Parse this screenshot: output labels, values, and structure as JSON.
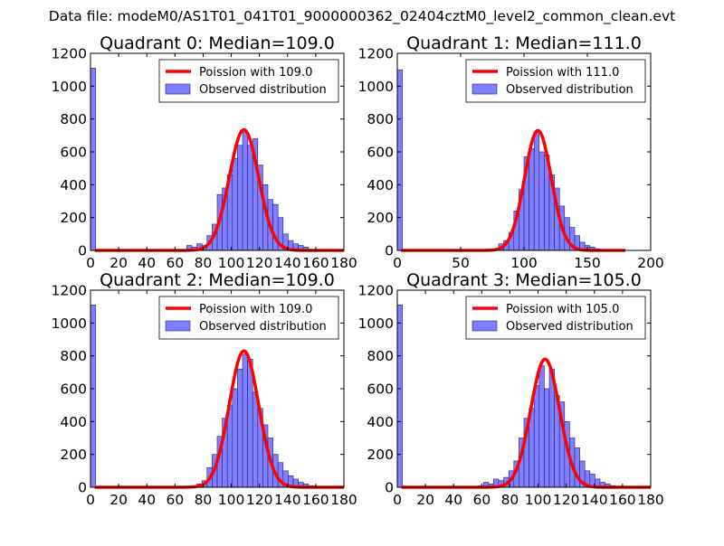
{
  "suptitle": "Data file: modeM0/AS1T01_041T01_9000000362_02404cztM0_level2_common_clean.evt",
  "colors": {
    "poisson": "#ff0000",
    "hist_fill": "#7f7fff",
    "hist_edge": "#1f1f7a",
    "axes": "#000000"
  },
  "chart_data": [
    {
      "type": "bar",
      "title": "Quadrant 0: Median=109.0",
      "xlim": [
        0,
        180
      ],
      "ylim": [
        0,
        1200
      ],
      "xticks": [
        "0",
        "20",
        "40",
        "60",
        "80",
        "100",
        "120",
        "140",
        "160",
        "180"
      ],
      "xtick_values": [
        0,
        20,
        40,
        60,
        80,
        100,
        120,
        140,
        160,
        180
      ],
      "yticks": [
        "0",
        "200",
        "400",
        "600",
        "800",
        "1000",
        "1200"
      ],
      "ytick_values": [
        0,
        200,
        400,
        600,
        800,
        1000,
        1200
      ],
      "bin_width": 3.6,
      "bins": [
        [
          0,
          1110
        ],
        [
          61.2,
          5
        ],
        [
          64.8,
          4
        ],
        [
          68.4,
          30
        ],
        [
          72,
          20
        ],
        [
          75.6,
          40
        ],
        [
          79.2,
          30
        ],
        [
          82.8,
          90
        ],
        [
          86.4,
          160
        ],
        [
          90,
          340
        ],
        [
          93.6,
          380
        ],
        [
          97.2,
          460
        ],
        [
          100.8,
          560
        ],
        [
          104.4,
          640
        ],
        [
          108,
          720
        ],
        [
          111.6,
          640
        ],
        [
          115.2,
          680
        ],
        [
          118.8,
          520
        ],
        [
          122.4,
          400
        ],
        [
          126,
          310
        ],
        [
          129.6,
          280
        ],
        [
          133.2,
          200
        ],
        [
          136.8,
          100
        ],
        [
          140.4,
          60
        ],
        [
          144,
          40
        ],
        [
          147.6,
          30
        ],
        [
          151.2,
          20
        ],
        [
          154.8,
          5
        ]
      ],
      "poisson_label": "Poission with 109.0",
      "observed_label": "Observed distribution",
      "poisson_curve": {
        "mean": 109.0,
        "peak": 735,
        "x_start": 3,
        "x_end": 180
      }
    },
    {
      "type": "bar",
      "title": "Quadrant 1: Median=111.0",
      "xlim": [
        0,
        200
      ],
      "ylim": [
        0,
        1200
      ],
      "xticks": [
        "0",
        "50",
        "100",
        "150",
        "200"
      ],
      "xtick_values": [
        0,
        50,
        100,
        150,
        200
      ],
      "yticks": [
        "0",
        "200",
        "400",
        "600",
        "800",
        "1000",
        "1200"
      ],
      "ytick_values": [
        0,
        200,
        400,
        600,
        800,
        1000,
        1200
      ],
      "bin_width": 4,
      "bins": [
        [
          0,
          1100
        ],
        [
          72,
          5
        ],
        [
          76,
          10
        ],
        [
          80,
          40
        ],
        [
          84,
          60
        ],
        [
          88,
          110
        ],
        [
          92,
          240
        ],
        [
          96,
          370
        ],
        [
          100,
          570
        ],
        [
          104,
          620
        ],
        [
          108,
          720
        ],
        [
          112,
          600
        ],
        [
          116,
          580
        ],
        [
          120,
          460
        ],
        [
          124,
          380
        ],
        [
          128,
          270
        ],
        [
          132,
          200
        ],
        [
          136,
          140
        ],
        [
          140,
          90
        ],
        [
          144,
          50
        ],
        [
          148,
          30
        ],
        [
          152,
          20
        ],
        [
          156,
          10
        ]
      ],
      "poisson_label": "Poission with 111.0",
      "observed_label": "Observed distribution",
      "poisson_curve": {
        "mean": 111.0,
        "peak": 730,
        "x_start": 3,
        "x_end": 180
      }
    },
    {
      "type": "bar",
      "title": "Quadrant 2: Median=109.0",
      "xlim": [
        0,
        180
      ],
      "ylim": [
        0,
        1200
      ],
      "xticks": [
        "0",
        "20",
        "40",
        "60",
        "80",
        "100",
        "120",
        "140",
        "160",
        "180"
      ],
      "xtick_values": [
        0,
        20,
        40,
        60,
        80,
        100,
        120,
        140,
        160,
        180
      ],
      "yticks": [
        "0",
        "200",
        "400",
        "600",
        "800",
        "1000",
        "1200"
      ],
      "ytick_values": [
        0,
        200,
        400,
        600,
        800,
        1000,
        1200
      ],
      "bin_width": 3.6,
      "bins": [
        [
          0,
          1110
        ],
        [
          72,
          10
        ],
        [
          75.6,
          20
        ],
        [
          79.2,
          40
        ],
        [
          82.8,
          120
        ],
        [
          86.4,
          200
        ],
        [
          90,
          310
        ],
        [
          93.6,
          420
        ],
        [
          97.2,
          500
        ],
        [
          100.8,
          600
        ],
        [
          104.4,
          720
        ],
        [
          108,
          810
        ],
        [
          111.6,
          780
        ],
        [
          115.2,
          580
        ],
        [
          118.8,
          480
        ],
        [
          122.4,
          380
        ],
        [
          126,
          300
        ],
        [
          129.6,
          200
        ],
        [
          133.2,
          150
        ],
        [
          136.8,
          100
        ],
        [
          140.4,
          70
        ],
        [
          144,
          50
        ],
        [
          147.6,
          30
        ],
        [
          151.2,
          20
        ],
        [
          154.8,
          10
        ]
      ],
      "poisson_label": "Poission with 109.0",
      "observed_label": "Observed distribution",
      "poisson_curve": {
        "mean": 109.0,
        "peak": 830,
        "x_start": 3,
        "x_end": 180
      }
    },
    {
      "type": "bar",
      "title": "Quadrant 3: Median=105.0",
      "xlim": [
        0,
        180
      ],
      "ylim": [
        0,
        1200
      ],
      "xticks": [
        "0",
        "20",
        "40",
        "60",
        "80",
        "100",
        "120",
        "140",
        "160",
        "180"
      ],
      "xtick_values": [
        0,
        20,
        40,
        60,
        80,
        100,
        120,
        140,
        160,
        180
      ],
      "yticks": [
        "0",
        "200",
        "400",
        "600",
        "800",
        "1000",
        "1200"
      ],
      "ytick_values": [
        0,
        200,
        400,
        600,
        800,
        1000,
        1200
      ],
      "bin_width": 3.6,
      "bins": [
        [
          0,
          1110
        ],
        [
          57.6,
          10
        ],
        [
          61.2,
          30
        ],
        [
          64.8,
          20
        ],
        [
          68.4,
          50
        ],
        [
          72,
          40
        ],
        [
          75.6,
          60
        ],
        [
          79.2,
          100
        ],
        [
          82.8,
          160
        ],
        [
          86.4,
          300
        ],
        [
          90,
          420
        ],
        [
          93.6,
          480
        ],
        [
          97.2,
          620
        ],
        [
          100.8,
          740
        ],
        [
          104.4,
          600
        ],
        [
          108,
          720
        ],
        [
          111.6,
          560
        ],
        [
          115.2,
          520
        ],
        [
          118.8,
          400
        ],
        [
          122.4,
          300
        ],
        [
          126,
          240
        ],
        [
          129.6,
          160
        ],
        [
          133.2,
          100
        ],
        [
          136.8,
          80
        ],
        [
          140.4,
          50
        ],
        [
          144,
          30
        ],
        [
          147.6,
          20
        ],
        [
          151.2,
          10
        ]
      ],
      "poisson_label": "Poission with 105.0",
      "observed_label": "Observed distribution",
      "poisson_curve": {
        "mean": 105.0,
        "peak": 780,
        "x_start": 3,
        "x_end": 180
      }
    }
  ]
}
